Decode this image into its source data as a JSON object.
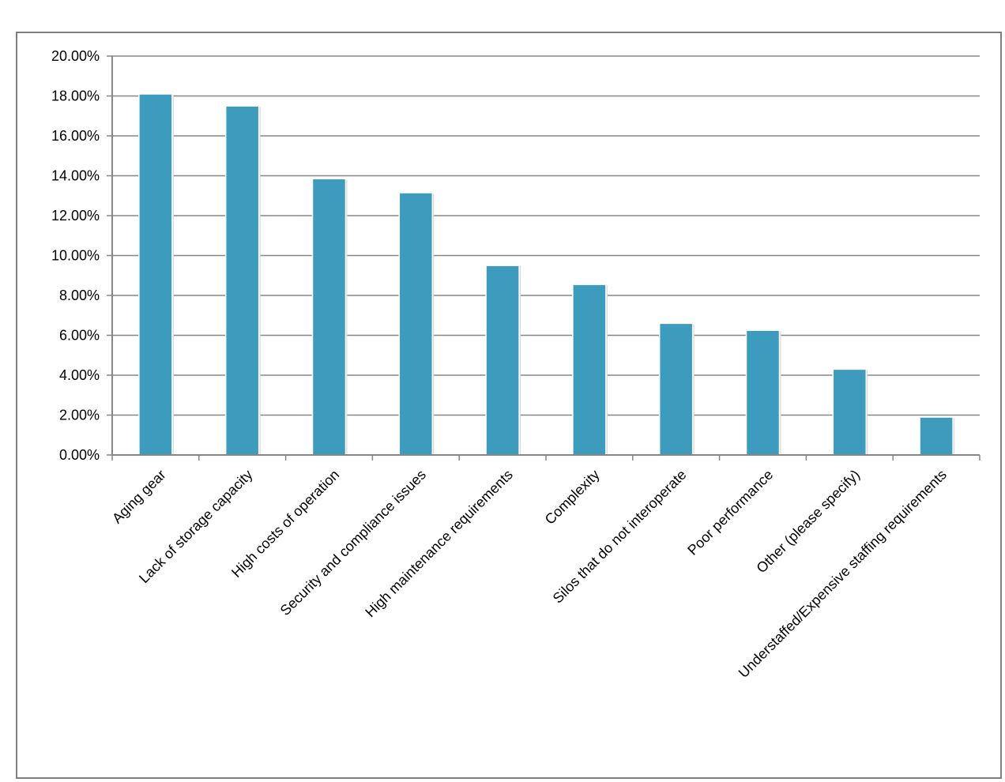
{
  "chart_data": {
    "type": "bar",
    "title": "",
    "xlabel": "",
    "ylabel": "",
    "categories": [
      "Aging gear",
      "Lack of storage capacity",
      "High costs of operation",
      "Security and compliance issues",
      "High maintenance requirements",
      "Complexity",
      "Silos that do not interoperate",
      "Poor performance",
      "Other (please specify)",
      "Understaffed/Expensive staffing requirements"
    ],
    "values": [
      18.1,
      17.5,
      13.85,
      13.15,
      9.5,
      8.55,
      6.6,
      6.25,
      4.3,
      1.9
    ],
    "ylim": [
      0,
      20
    ],
    "yticks": [
      0,
      2,
      4,
      6,
      8,
      10,
      12,
      14,
      16,
      18,
      20
    ],
    "ytick_labels": [
      "0.00%",
      "2.00%",
      "4.00%",
      "6.00%",
      "8.00%",
      "10.00%",
      "12.00%",
      "14.00%",
      "16.00%",
      "18.00%",
      "20.00%"
    ],
    "grid": true,
    "legend": "none",
    "bar_color": "#3d9bbd",
    "grid_color": "#868686"
  }
}
